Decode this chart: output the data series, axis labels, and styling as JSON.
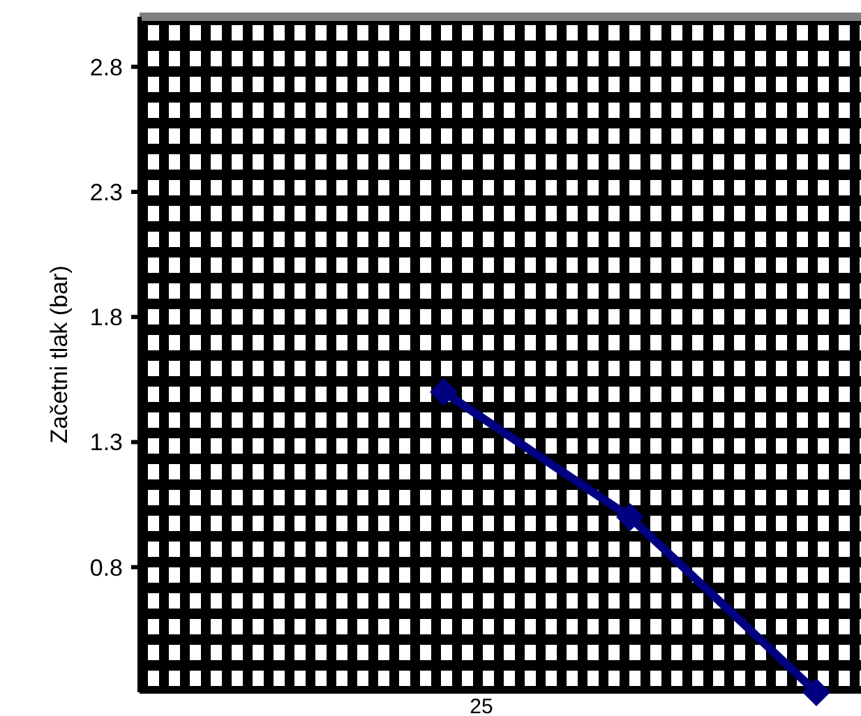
{
  "chart_data": {
    "type": "line",
    "ylabel": "Začetni tlak (bar)",
    "categories": [
      null,
      null,
      null
    ],
    "series": [
      {
        "color": "#000080",
        "values": [
          1.5,
          1.0,
          0.3
        ]
      }
    ],
    "annotations": [
      "25"
    ],
    "ylim": [
      0.3,
      3.0
    ],
    "yticks": [
      0.8,
      1.3,
      1.8,
      2.3,
      2.8
    ],
    "marker": "diamond",
    "line_style": "solid"
  }
}
